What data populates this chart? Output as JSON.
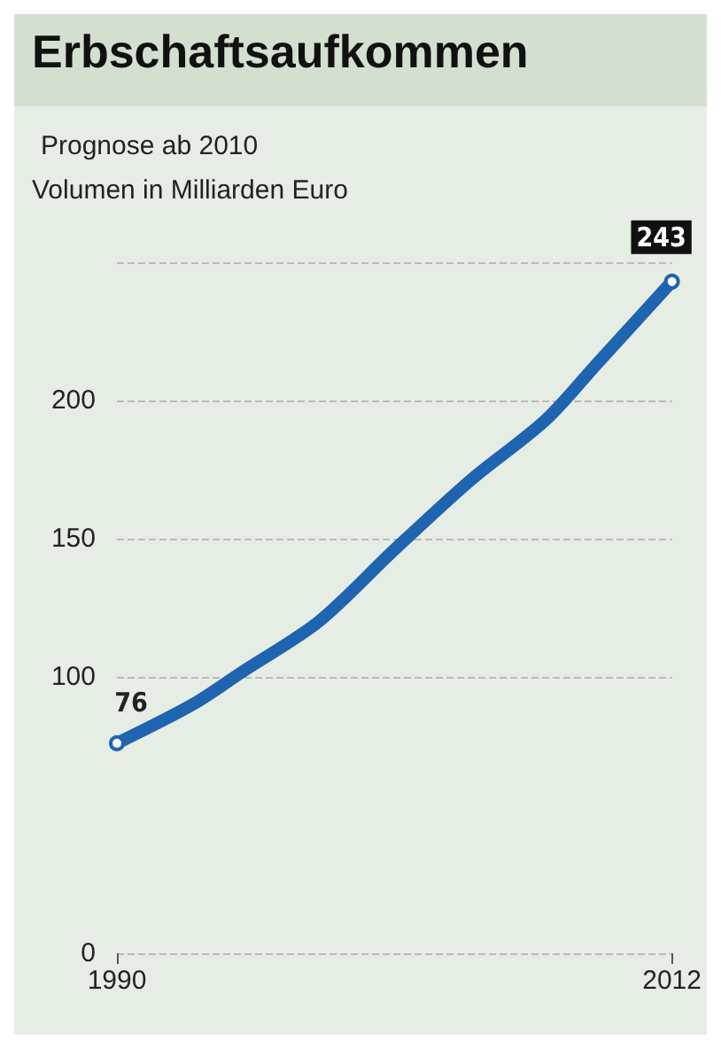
{
  "chart_data": {
    "type": "line",
    "title": "Erbschaftsaufkommen",
    "subtitle": "Prognose ab 2010",
    "ylabel": "Volumen in Milliarden Euro",
    "x": [
      1990,
      1993,
      1995,
      1998,
      2001,
      2004,
      2007,
      2009,
      2011,
      2012
    ],
    "series": [
      {
        "color": "#1f64b0",
        "values": [
          76,
          90,
          102,
          120,
          146,
          171,
          193,
          213,
          233,
          243
        ],
        "value_labels": [
          "76",
          null,
          null,
          null,
          null,
          null,
          null,
          null,
          null,
          "243"
        ]
      }
    ],
    "xlim": [
      1990,
      2012
    ],
    "xticks": [
      1990,
      2012
    ],
    "ylim": [
      0,
      250
    ],
    "yticks": [
      0,
      100,
      150,
      200,
      {
        "value": 250,
        "label": null
      }
    ],
    "grid": "y",
    "line_style": "solid"
  }
}
